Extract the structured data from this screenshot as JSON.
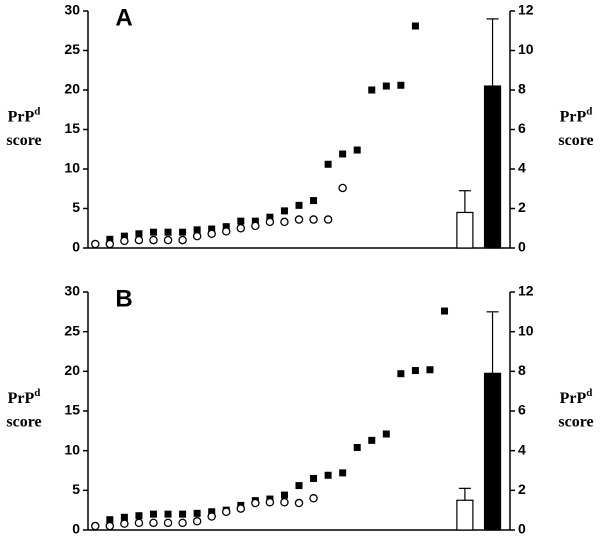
{
  "chart_data": [
    {
      "type": "scatter",
      "panel_label": "A",
      "ylabel": {
        "main": "PrP",
        "superscript": "d",
        "second_line": "score"
      },
      "y2label": {
        "main": "PrP",
        "superscript": "d",
        "second_line": "score"
      },
      "xlim": [
        0,
        29
      ],
      "ylim": [
        0,
        30
      ],
      "yticks": [
        0,
        5,
        10,
        15,
        20,
        25,
        30
      ],
      "y2lim": [
        0,
        12
      ],
      "y2ticks": [
        0,
        2,
        4,
        6,
        8,
        10,
        12
      ],
      "series": [
        {
          "kind": "square",
          "color": "#000000",
          "x": [
            1.5,
            2.5,
            3.5,
            4.5,
            5.5,
            6.5,
            7.5,
            8.5,
            9.5,
            10.5,
            11.5,
            12.5,
            13.5,
            14.5,
            15.5,
            16.5,
            17.5,
            18.5,
            19.5,
            20.5,
            21.5,
            22.5
          ],
          "values": [
            1.1,
            1.5,
            1.8,
            2.0,
            2.0,
            2.0,
            2.3,
            2.4,
            2.7,
            3.4,
            3.4,
            3.9,
            4.7,
            5.4,
            6.0,
            10.6,
            11.9,
            12.4,
            20.0,
            20.5,
            20.6,
            28.1
          ]
        },
        {
          "kind": "circle",
          "color": "#000000",
          "x": [
            0.5,
            1.5,
            2.5,
            3.5,
            4.5,
            5.5,
            6.5,
            7.5,
            8.5,
            9.5,
            10.5,
            11.5,
            12.5,
            13.5,
            14.5,
            15.5,
            16.5,
            17.5
          ],
          "values": [
            0.5,
            0.5,
            0.9,
            1.0,
            1.0,
            1.0,
            1.0,
            1.5,
            1.8,
            2.1,
            2.5,
            2.8,
            3.3,
            3.3,
            3.6,
            3.6,
            3.6,
            7.6
          ]
        },
        {
          "kind": "bar",
          "axis": "y2",
          "x": [
            25.9,
            27.8
          ],
          "values": [
            1.8,
            8.2
          ],
          "errors": [
            1.1,
            3.4
          ],
          "colors": [
            "#ffffff",
            "#000000"
          ]
        }
      ]
    },
    {
      "type": "scatter",
      "panel_label": "B",
      "ylabel": {
        "main": "PrP",
        "superscript": "d",
        "second_line": "score"
      },
      "y2label": {
        "main": "PrP",
        "superscript": "d",
        "second_line": "score"
      },
      "xlim": [
        0,
        29
      ],
      "ylim": [
        0,
        30
      ],
      "yticks": [
        0,
        5,
        10,
        15,
        20,
        25,
        30
      ],
      "y2lim": [
        0,
        12
      ],
      "y2ticks": [
        0,
        2,
        4,
        6,
        8,
        10,
        12
      ],
      "series": [
        {
          "kind": "square",
          "color": "#000000",
          "x": [
            1.5,
            2.5,
            3.5,
            4.5,
            5.5,
            6.5,
            7.5,
            8.5,
            9.5,
            10.5,
            11.5,
            12.5,
            13.5,
            14.5,
            15.5,
            16.5,
            17.5,
            18.5,
            19.5,
            20.5,
            21.5,
            22.5,
            23.5,
            24.5
          ],
          "values": [
            1.3,
            1.6,
            1.8,
            2.0,
            2.0,
            2.0,
            2.1,
            2.3,
            2.5,
            3.1,
            3.7,
            3.9,
            4.4,
            5.6,
            6.5,
            6.9,
            7.2,
            10.4,
            11.3,
            12.1,
            19.7,
            20.1,
            20.2,
            27.6
          ]
        },
        {
          "kind": "circle",
          "color": "#000000",
          "x": [
            0.5,
            1.5,
            2.5,
            3.5,
            4.5,
            5.5,
            6.5,
            7.5,
            8.5,
            9.5,
            10.5,
            11.5,
            12.5,
            13.5,
            14.5,
            15.5
          ],
          "values": [
            0.5,
            0.5,
            0.8,
            0.9,
            0.9,
            0.9,
            0.9,
            1.1,
            1.7,
            2.3,
            2.7,
            3.4,
            3.5,
            3.5,
            3.4,
            4.0
          ]
        },
        {
          "kind": "bar",
          "axis": "y2",
          "x": [
            25.9,
            27.8
          ],
          "values": [
            1.5,
            7.9
          ],
          "errors": [
            0.6,
            3.1
          ],
          "colors": [
            "#ffffff",
            "#000000"
          ]
        }
      ]
    }
  ]
}
